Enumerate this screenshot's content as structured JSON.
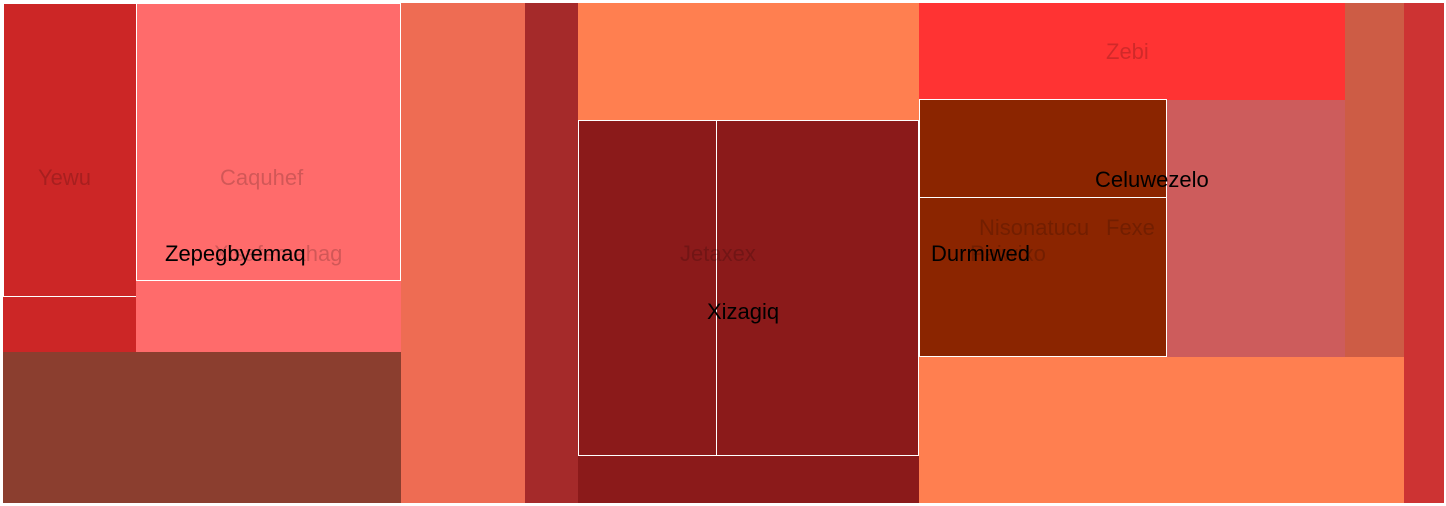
{
  "chart_data": {
    "type": "treemap",
    "title": "",
    "tiles": [
      {
        "label": "Yewu",
        "color": "#cc2626",
        "label_style": "dim"
      },
      {
        "label": "Caquhef",
        "color": "#ff6b6b",
        "label_style": "dim"
      },
      {
        "label": "Xisafemahag",
        "color": "#ff6b6b",
        "label_style": "dim"
      },
      {
        "label": "Zepegbyemaq",
        "color": "#8b3e2f",
        "label_style": "dark"
      },
      {
        "label": "",
        "color": "#ee6c53"
      },
      {
        "label": "",
        "color": "#a52a2a"
      },
      {
        "label": "",
        "color": "#ff7f50"
      },
      {
        "label": "Jetaxex",
        "color": "#8b1a1a",
        "label_style": "dim"
      },
      {
        "label": "Xizagiq",
        "color": "#8b1a1a",
        "label_style": "dark"
      },
      {
        "label": "Zebi",
        "color": "#ff3333",
        "label_style": "dim"
      },
      {
        "label": "Celuwezelo",
        "color": "#8b2500",
        "label_style": "dark"
      },
      {
        "label": "Nisonatucu",
        "color": "#8b2500",
        "label_style": "dim"
      },
      {
        "label": "Fexe",
        "color": "#cd5c5c",
        "label_style": "dim"
      },
      {
        "label": "Durmiwed",
        "color": "#8b2500",
        "label_style": "dark"
      },
      {
        "label": "Paiwixo",
        "color": "#8b2500",
        "label_style": "dim"
      },
      {
        "label": "",
        "color": "#cd5c45"
      },
      {
        "label": "",
        "color": "#ff7f50"
      },
      {
        "label": "",
        "color": "#cd3333"
      }
    ]
  }
}
